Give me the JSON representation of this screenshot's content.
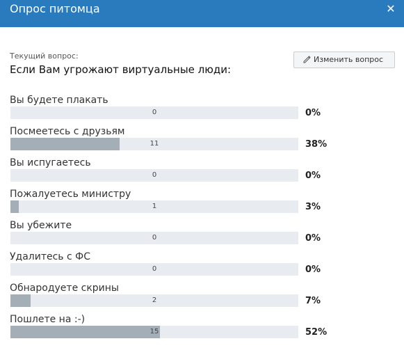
{
  "dialog": {
    "title": "Опрос питомца",
    "close_glyph": "✕"
  },
  "poll": {
    "current_label": "Текущий вопрос:",
    "question": "Если Вам угрожают виртуальные люди:",
    "edit_button_label": "Изменить вопрос",
    "options": [
      {
        "label": "Вы будете плакать",
        "count": "0",
        "percent": "0%",
        "share": 0.0
      },
      {
        "label": "Посмеетесь с друзьям",
        "count": "11",
        "percent": "38%",
        "share": 0.38
      },
      {
        "label": "Вы испугаетесь",
        "count": "0",
        "percent": "0%",
        "share": 0.0
      },
      {
        "label": "Пожалуетесь министру",
        "count": "1",
        "percent": "3%",
        "share": 0.03
      },
      {
        "label": "Вы убежите",
        "count": "0",
        "percent": "0%",
        "share": 0.0
      },
      {
        "label": "Удалитесь с ФС",
        "count": "0",
        "percent": "0%",
        "share": 0.0
      },
      {
        "label": "Обнародуете скрины",
        "count": "2",
        "percent": "7%",
        "share": 0.07
      },
      {
        "label": "Пошлете на :-)",
        "count": "15",
        "percent": "52%",
        "share": 0.52
      }
    ]
  },
  "colors": {
    "header_bg": "#2a7bbd",
    "bar_track": "#e8ecf1",
    "bar_fill": "#a4aeb7"
  },
  "icons": {
    "close": "close-icon",
    "edit": "pencil-icon"
  }
}
